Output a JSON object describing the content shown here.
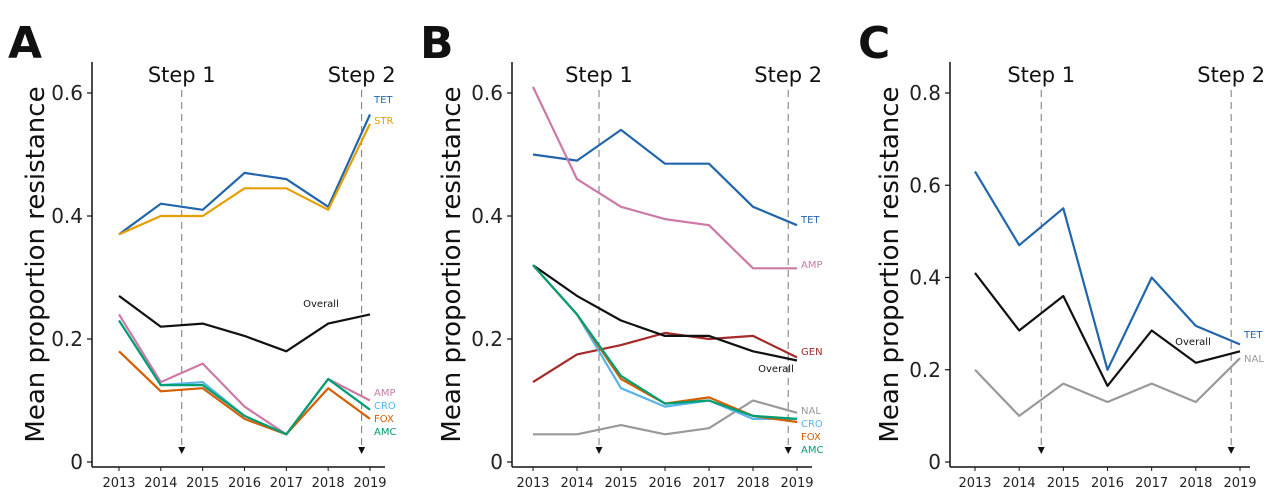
{
  "chart_data": [
    {
      "type": "line",
      "panel": "A",
      "ylabel": "Mean proportion resistance",
      "x": [
        2013,
        2014,
        2015,
        2016,
        2017,
        2018,
        2019
      ],
      "ylim": [
        0,
        0.6
      ],
      "yticks": [
        0,
        0.2,
        0.4,
        0.6
      ],
      "ytick_labels": [
        "0",
        "0.2",
        "0.4",
        "0.6"
      ],
      "steps": [
        {
          "label": "Step 1",
          "x": 2014.5
        },
        {
          "label": "Step 2",
          "x": 2018.8
        }
      ],
      "series": [
        {
          "name": "TET",
          "color": "#2166ac",
          "values": [
            0.37,
            0.42,
            0.41,
            0.47,
            0.46,
            0.415,
            0.565
          ]
        },
        {
          "name": "STR",
          "color": "#e69f00",
          "values": [
            0.37,
            0.4,
            0.4,
            0.445,
            0.445,
            0.41,
            0.55
          ]
        },
        {
          "name": "Overall",
          "color": "#111111",
          "values": [
            0.27,
            0.22,
            0.225,
            0.205,
            0.18,
            0.225,
            0.24
          ]
        },
        {
          "name": "AMP",
          "color": "#cc79a7",
          "values": [
            0.24,
            0.13,
            0.16,
            0.09,
            0.045,
            0.135,
            0.1
          ]
        },
        {
          "name": "CRO",
          "color": "#56b4e9",
          "values": [
            0.23,
            0.125,
            0.13,
            0.075,
            0.045,
            0.135,
            0.085
          ]
        },
        {
          "name": "FOX",
          "color": "#d55e00",
          "values": [
            0.18,
            0.115,
            0.12,
            0.07,
            0.045,
            0.12,
            0.07
          ]
        },
        {
          "name": "AMC",
          "color": "#009e73",
          "values": [
            0.23,
            0.125,
            0.125,
            0.075,
            0.045,
            0.135,
            0.085
          ]
        }
      ]
    },
    {
      "type": "line",
      "panel": "B",
      "ylabel": "Mean proportion resistance",
      "x": [
        2013,
        2014,
        2015,
        2016,
        2017,
        2018,
        2019
      ],
      "ylim": [
        0,
        0.6
      ],
      "yticks": [
        0,
        0.2,
        0.4,
        0.6
      ],
      "ytick_labels": [
        "0",
        "0.2",
        "0.4",
        "0.6"
      ],
      "steps": [
        {
          "label": "Step 1",
          "x": 2014.5
        },
        {
          "label": "Step 2",
          "x": 2018.8
        }
      ],
      "series": [
        {
          "name": "TET",
          "color": "#2166ac",
          "values": [
            0.5,
            0.49,
            0.54,
            0.485,
            0.485,
            0.415,
            0.385
          ]
        },
        {
          "name": "AMP",
          "color": "#cc79a7",
          "values": [
            0.61,
            0.46,
            0.415,
            0.395,
            0.385,
            0.315,
            0.315
          ]
        },
        {
          "name": "GEN",
          "color": "#a52a2a",
          "values": [
            0.13,
            0.175,
            0.19,
            0.21,
            0.2,
            0.205,
            0.17
          ]
        },
        {
          "name": "Overall",
          "color": "#111111",
          "values": [
            0.32,
            0.27,
            0.23,
            0.205,
            0.205,
            0.18,
            0.165
          ]
        },
        {
          "name": "NAL",
          "color": "#999999",
          "values": [
            0.045,
            0.045,
            0.06,
            0.045,
            0.055,
            0.1,
            0.08
          ]
        },
        {
          "name": "CRO",
          "color": "#56b4e9",
          "values": [
            0.32,
            0.24,
            0.12,
            0.09,
            0.1,
            0.07,
            0.07
          ]
        },
        {
          "name": "FOX",
          "color": "#d55e00",
          "values": [
            0.32,
            0.24,
            0.135,
            0.095,
            0.105,
            0.075,
            0.065
          ]
        },
        {
          "name": "AMC",
          "color": "#009e73",
          "values": [
            0.32,
            0.24,
            0.14,
            0.095,
            0.1,
            0.075,
            0.07
          ]
        }
      ]
    },
    {
      "type": "line",
      "panel": "C",
      "ylabel": "Mean proportion resistance",
      "x": [
        2013,
        2014,
        2015,
        2016,
        2017,
        2018,
        2019
      ],
      "ylim": [
        0,
        0.8
      ],
      "yticks": [
        0,
        0.2,
        0.4,
        0.6,
        0.8
      ],
      "ytick_labels": [
        "0",
        "0.2",
        "0.4",
        "0.6",
        "0.8"
      ],
      "steps": [
        {
          "label": "Step 1",
          "x": 2014.5
        },
        {
          "label": "Step 2",
          "x": 2018.8
        }
      ],
      "series": [
        {
          "name": "TET",
          "color": "#2166ac",
          "values": [
            0.63,
            0.47,
            0.55,
            0.2,
            0.4,
            0.295,
            0.255
          ]
        },
        {
          "name": "Overall",
          "color": "#111111",
          "values": [
            0.41,
            0.285,
            0.36,
            0.165,
            0.285,
            0.215,
            0.24
          ]
        },
        {
          "name": "NAL",
          "color": "#999999",
          "values": [
            0.2,
            0.1,
            0.17,
            0.13,
            0.17,
            0.13,
            0.225
          ]
        }
      ]
    }
  ]
}
